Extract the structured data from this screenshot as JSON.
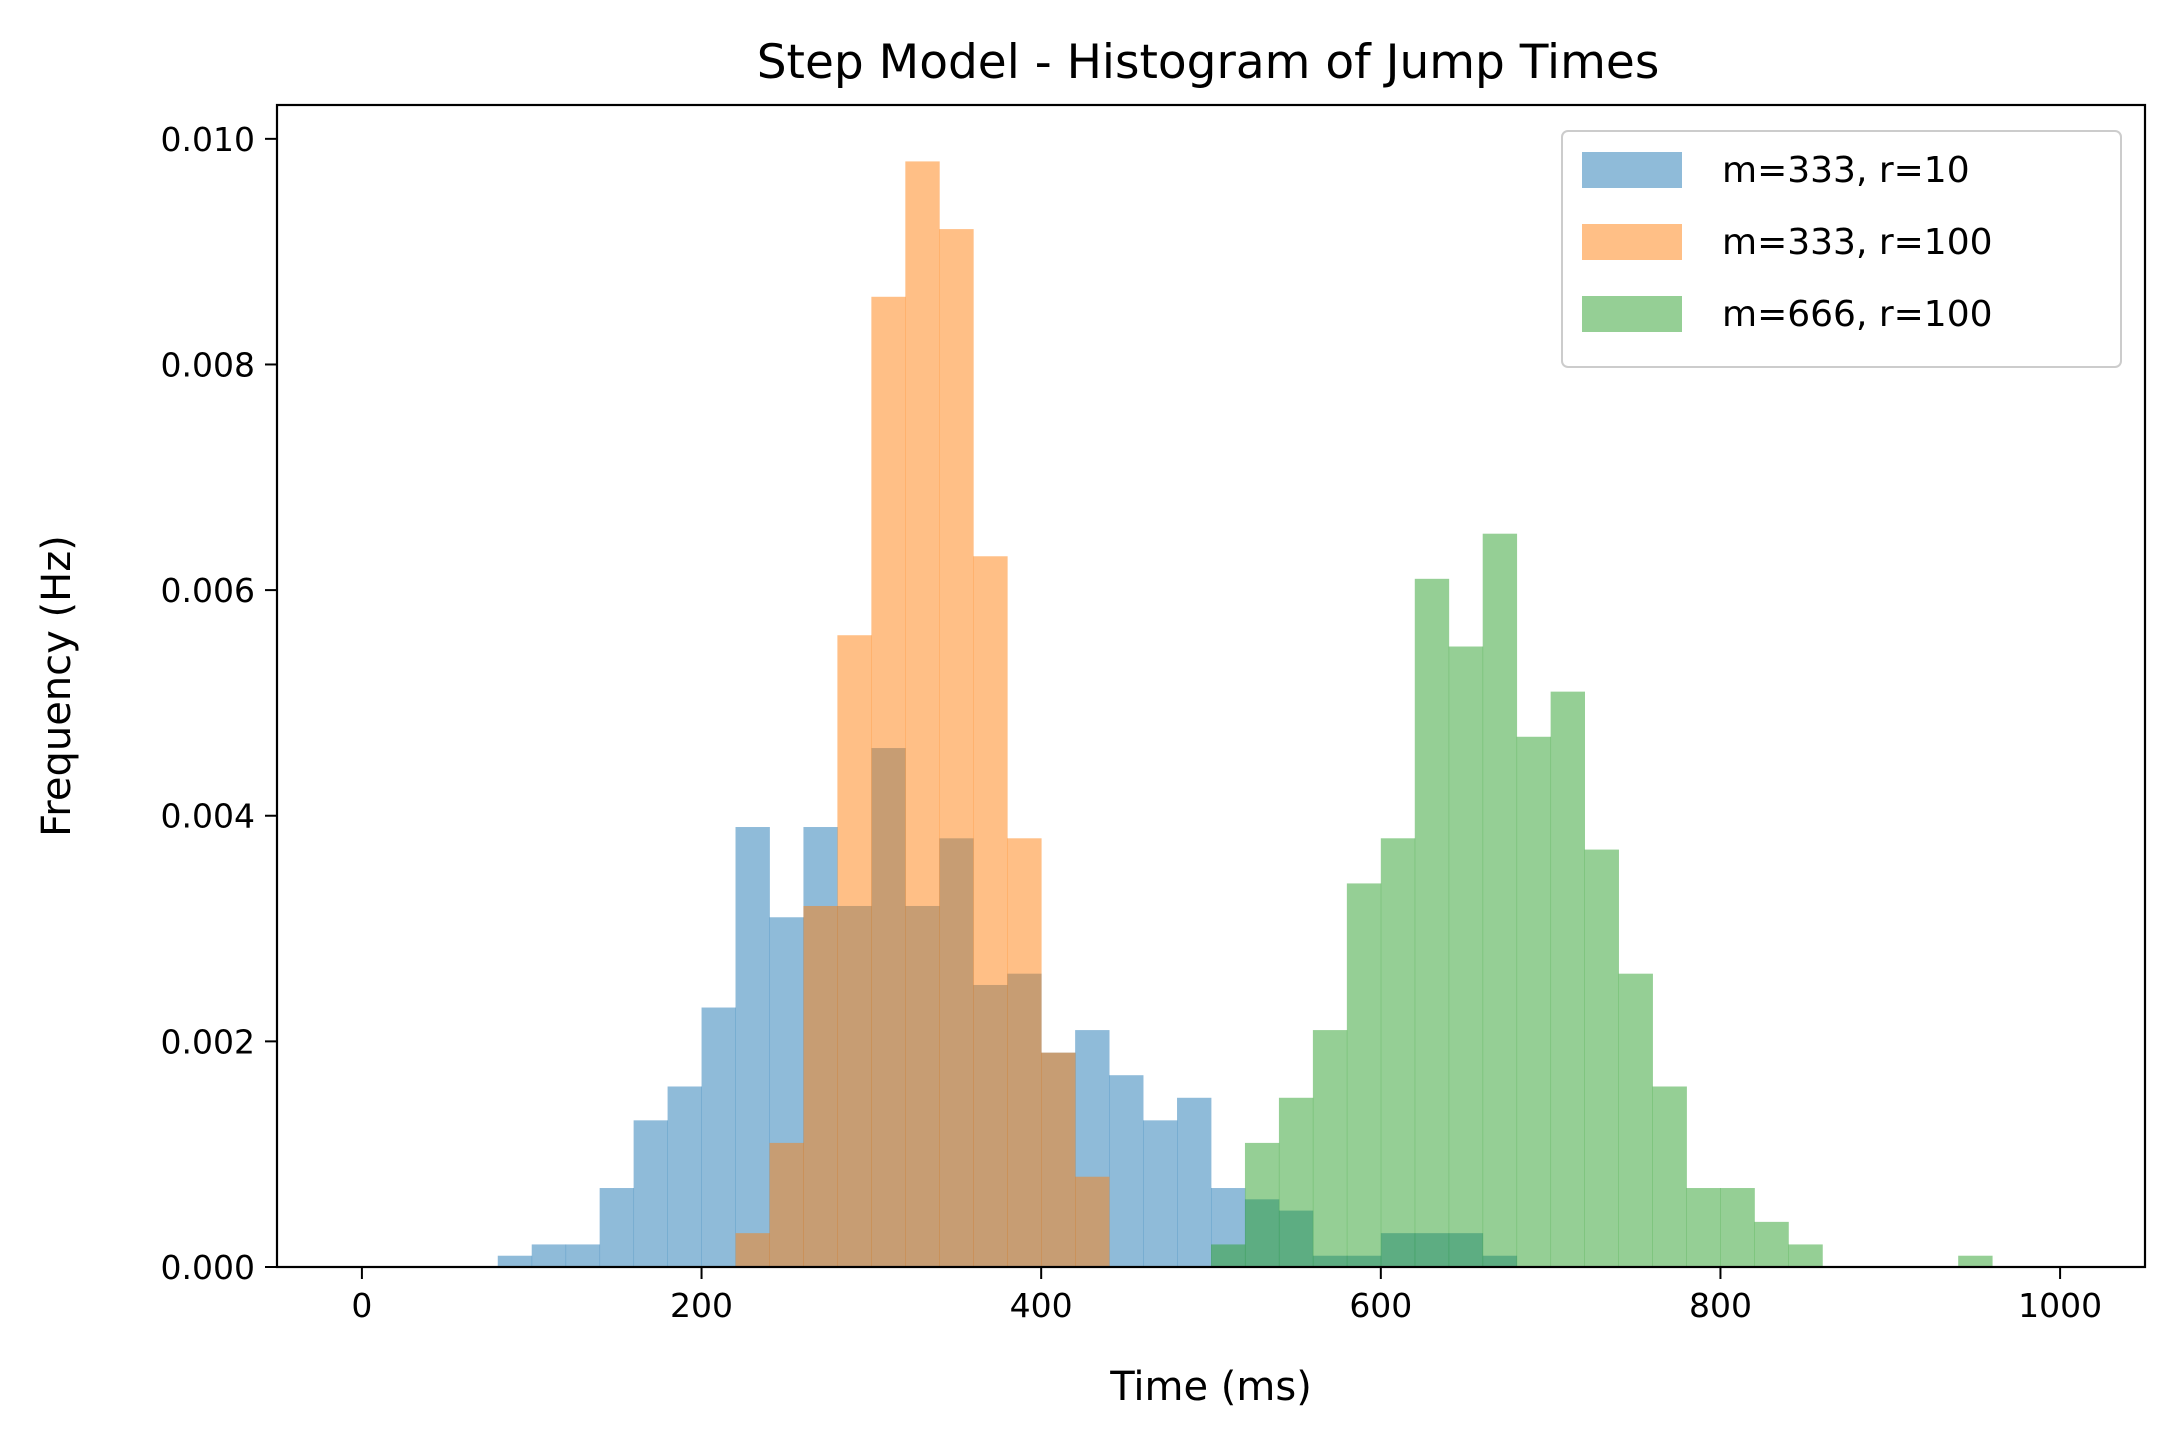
{
  "chart_data": {
    "type": "histogram",
    "title": "Step Model - Histogram of Jump Times",
    "xlabel": "Time (ms)",
    "ylabel": "Frequency (Hz)",
    "xlim": [
      -50,
      1050
    ],
    "ylim": [
      0,
      0.0103
    ],
    "xticks": [
      0,
      200,
      400,
      600,
      800,
      1000
    ],
    "xtick_labels": [
      "0",
      "200",
      "400",
      "600",
      "800",
      "1000"
    ],
    "yticks": [
      0,
      0.002,
      0.004,
      0.006,
      0.008,
      0.01
    ],
    "ytick_labels": [
      "0.000",
      "0.002",
      "0.004",
      "0.006",
      "0.008",
      "0.010"
    ],
    "bin_width": 20,
    "grid": false,
    "legend_position": "top-right",
    "series": [
      {
        "name": "m=333, r=10",
        "color": "#1f77b4",
        "alpha": 0.5,
        "bin_start": 80,
        "values": [
          0.0001,
          0.0002,
          0.0002,
          0.0007,
          0.0013,
          0.0016,
          0.0023,
          0.0039,
          0.0031,
          0.0039,
          0.0032,
          0.0046,
          0.0032,
          0.0038,
          0.0025,
          0.0026,
          0.0019,
          0.0021,
          0.0017,
          0.0013,
          0.0015,
          0.0007,
          0.0006,
          0.0005,
          0.0001,
          0.0001,
          0.0003,
          0.0003,
          0.0003,
          0.0001
        ]
      },
      {
        "name": "m=333, r=100",
        "color": "#ff7f0e",
        "alpha": 0.5,
        "bin_start": 220,
        "values": [
          0.0003,
          0.0011,
          0.0032,
          0.0056,
          0.0086,
          0.0098,
          0.0092,
          0.0063,
          0.0038,
          0.0019,
          0.0008
        ]
      },
      {
        "name": "m=666, r=100",
        "color": "#2ca02c",
        "alpha": 0.5,
        "bin_start": 500,
        "values": [
          0.0002,
          0.0011,
          0.0015,
          0.0021,
          0.0034,
          0.0038,
          0.0061,
          0.0055,
          0.0065,
          0.0047,
          0.0051,
          0.0037,
          0.0026,
          0.0016,
          0.0007,
          0.0007,
          0.0004,
          0.0002,
          0,
          0,
          0,
          0,
          0.0001
        ]
      }
    ]
  }
}
